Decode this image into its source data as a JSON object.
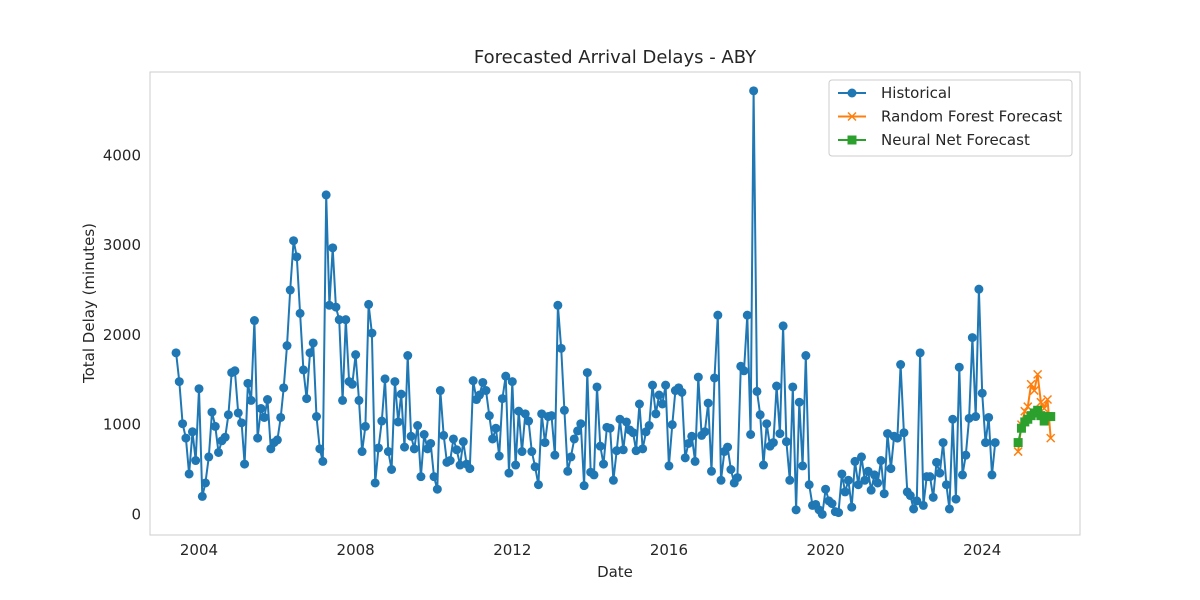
{
  "chart_data": {
    "type": "line",
    "title": "Forecasted Arrival Delays - ABY",
    "xlabel": "Date",
    "ylabel": "Total Delay (minutes)",
    "xlim": [
      "2002-10-01",
      "2026-07-01"
    ],
    "ylim": [
      -230,
      4930
    ],
    "grid": false,
    "legend_position": "top-right",
    "x_ticks": [
      {
        "date": "2004-01-01",
        "label": "2004"
      },
      {
        "date": "2008-01-01",
        "label": "2008"
      },
      {
        "date": "2012-01-01",
        "label": "2012"
      },
      {
        "date": "2016-01-01",
        "label": "2016"
      },
      {
        "date": "2020-01-01",
        "label": "2020"
      },
      {
        "date": "2024-01-01",
        "label": "2024"
      }
    ],
    "y_ticks": [
      {
        "value": 0,
        "label": "0"
      },
      {
        "value": 1000,
        "label": "1000"
      },
      {
        "value": 2000,
        "label": "2000"
      },
      {
        "value": 3000,
        "label": "3000"
      },
      {
        "value": 4000,
        "label": "4000"
      }
    ],
    "colors": {
      "historical": "#1f77b4",
      "rf": "#ff7f0e",
      "nn": "#2ca02c",
      "frame": "#cccccc"
    },
    "series": [
      {
        "name": "Historical",
        "marker": "circle",
        "color": "#1f77b4",
        "start": "2003-06",
        "values": [
          1800,
          1480,
          1010,
          850,
          450,
          920,
          600,
          1400,
          200,
          350,
          640,
          1140,
          980,
          690,
          820,
          860,
          1110,
          1580,
          1600,
          1130,
          1020,
          560,
          1460,
          1270,
          2160,
          850,
          1180,
          1080,
          1280,
          730,
          800,
          830,
          1080,
          1410,
          1880,
          2500,
          3050,
          2870,
          2240,
          1610,
          1290,
          1800,
          1910,
          1090,
          730,
          590,
          3560,
          2330,
          2970,
          2310,
          2170,
          1270,
          2170,
          1480,
          1450,
          1780,
          1270,
          700,
          980,
          2340,
          2020,
          350,
          740,
          1040,
          1510,
          700,
          500,
          1480,
          1030,
          1340,
          750,
          1770,
          870,
          730,
          990,
          420,
          890,
          730,
          790,
          420,
          280,
          1380,
          880,
          580,
          600,
          840,
          720,
          550,
          810,
          560,
          510,
          1490,
          1280,
          1330,
          1470,
          1380,
          1100,
          840,
          960,
          650,
          1290,
          1540,
          460,
          1480,
          550,
          1150,
          700,
          1120,
          1040,
          700,
          530,
          330,
          1120,
          800,
          1090,
          1100,
          660,
          2330,
          1850,
          1160,
          480,
          640,
          840,
          930,
          1010,
          320,
          1580,
          470,
          440,
          1420,
          760,
          560,
          970,
          960,
          380,
          710,
          1060,
          720,
          1030,
          940,
          910,
          710,
          1230,
          730,
          920,
          990,
          1440,
          1120,
          1330,
          1230,
          1440,
          540,
          1000,
          1380,
          1410,
          1360,
          630,
          790,
          870,
          590,
          1530,
          880,
          920,
          1240,
          480,
          1520,
          2220,
          380,
          700,
          750,
          500,
          350,
          410,
          1650,
          1600,
          2220,
          890,
          4720,
          1370,
          1110,
          550,
          1010,
          760,
          800,
          1430,
          900,
          2100,
          810,
          380,
          1420,
          50,
          1250,
          540,
          1770,
          330,
          100,
          110,
          50,
          0,
          280,
          150,
          120,
          30,
          20,
          450,
          250,
          380,
          80,
          590,
          330,
          640,
          380,
          480,
          270,
          440,
          350,
          600,
          230,
          900,
          510,
          870,
          850,
          1670,
          910,
          250,
          210,
          60,
          150,
          1800,
          100,
          420,
          420,
          190,
          580,
          460,
          800,
          330,
          60,
          1060,
          170,
          1640,
          440,
          660,
          1070,
          1970,
          1090,
          2510,
          1350,
          800,
          1080,
          440,
          800
        ]
      },
      {
        "name": "Random Forest Forecast",
        "marker": "x",
        "color": "#ff7f0e",
        "start": "2024-12",
        "values": [
          700,
          1000,
          1150,
          1200,
          1450,
          1380,
          1560,
          1250,
          1180,
          1280,
          850
        ]
      },
      {
        "name": "Neural Net Forecast",
        "marker": "square",
        "color": "#2ca02c",
        "start": "2024-12",
        "values": [
          800,
          960,
          1030,
          1060,
          1100,
          1130,
          1160,
          1100,
          1040,
          1090,
          1090
        ]
      }
    ]
  }
}
